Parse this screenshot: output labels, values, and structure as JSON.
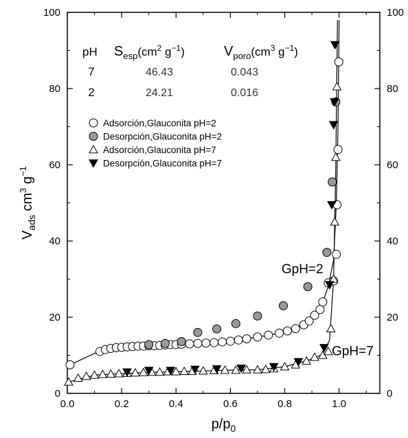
{
  "chart_data": {
    "type": "scatter",
    "xlabel": {
      "base": "p/p",
      "sub": "0"
    },
    "ylabel": {
      "base": "V",
      "sub": "ads",
      "unit": " cm",
      "sup1": "3",
      "mid": " g",
      "sup2": "−1"
    },
    "xlim": [
      0,
      1.15
    ],
    "ylim": [
      0,
      100
    ],
    "x_ticks": [
      "0.0",
      "0.2",
      "0.4",
      "0.6",
      "0.8",
      "1.0"
    ],
    "x_tick_values": [
      0,
      0.2,
      0.4,
      0.6,
      0.8,
      1.0
    ],
    "y_ticks": [
      "0",
      "20",
      "40",
      "60",
      "80",
      "100"
    ],
    "y_tick_values": [
      0,
      20,
      40,
      60,
      80,
      100
    ],
    "right_y_ticks": [
      "0",
      "20",
      "40",
      "60",
      "80",
      "100"
    ],
    "table": {
      "headers": {
        "ph": "pH",
        "s_base": "S",
        "s_sub": "esp",
        "s_unit": "(cm",
        "s_sup1": "2",
        "s_mid": " g",
        "s_sup2": "−1",
        "s_end": ")",
        "v_base": "V",
        "v_sub": "poro",
        "v_unit": "(cm",
        "v_sup1": "3",
        "v_mid": " g",
        "v_sup2": "−1",
        "v_end": ")"
      },
      "rows": [
        {
          "ph": "7",
          "s": "46.43",
          "v": "0.043"
        },
        {
          "ph": "2",
          "s": "24.21",
          "v": "0.016"
        }
      ]
    },
    "series": [
      {
        "name": "Adsorción,Glauconita pH=2",
        "marker": "circle-open",
        "points": [
          [
            0.01,
            7.5
          ],
          [
            0.12,
            11
          ],
          [
            0.14,
            11.5
          ],
          [
            0.16,
            11.8
          ],
          [
            0.18,
            12
          ],
          [
            0.2,
            12.1
          ],
          [
            0.22,
            12.2
          ],
          [
            0.24,
            12.3
          ],
          [
            0.26,
            12.4
          ],
          [
            0.28,
            12.4
          ],
          [
            0.3,
            12.5
          ],
          [
            0.32,
            12.5
          ],
          [
            0.34,
            12.6
          ],
          [
            0.36,
            12.7
          ],
          [
            0.38,
            12.8
          ],
          [
            0.4,
            12.8
          ],
          [
            0.42,
            12.9
          ],
          [
            0.45,
            13
          ],
          [
            0.48,
            13.1
          ],
          [
            0.51,
            13.2
          ],
          [
            0.54,
            13.3
          ],
          [
            0.57,
            13.5
          ],
          [
            0.6,
            13.7
          ],
          [
            0.63,
            14
          ],
          [
            0.66,
            14.3
          ],
          [
            0.7,
            14.8
          ],
          [
            0.74,
            15.3
          ],
          [
            0.78,
            15.8
          ],
          [
            0.81,
            16.4
          ],
          [
            0.84,
            17
          ],
          [
            0.87,
            18
          ],
          [
            0.89,
            19
          ],
          [
            0.91,
            20.5
          ],
          [
            0.93,
            22
          ],
          [
            0.94,
            24
          ],
          [
            0.96,
            29
          ],
          [
            0.98,
            29.5
          ],
          [
            0.99,
            36.5
          ],
          [
            0.993,
            49.5
          ],
          [
            0.996,
            64
          ],
          [
            0.999,
            87
          ]
        ]
      },
      {
        "name": "Desorpción,Glauconita pH=2",
        "marker": "circle-filled",
        "points": [
          [
            0.988,
            76.5
          ],
          [
            0.975,
            55.5
          ],
          [
            0.955,
            37
          ],
          [
            0.885,
            28
          ],
          [
            0.795,
            23
          ],
          [
            0.7,
            20.3
          ],
          [
            0.62,
            18.3
          ],
          [
            0.55,
            16.9
          ],
          [
            0.48,
            16
          ],
          [
            0.42,
            13.6
          ],
          [
            0.36,
            13.1
          ],
          [
            0.3,
            12.8
          ]
        ]
      },
      {
        "name": "Adsorción,Glauconita pH=7",
        "marker": "triangle-open",
        "points": [
          [
            0.005,
            3
          ],
          [
            0.04,
            4
          ],
          [
            0.07,
            4.5
          ],
          [
            0.1,
            4.8
          ],
          [
            0.13,
            5
          ],
          [
            0.16,
            5.1
          ],
          [
            0.19,
            5.2
          ],
          [
            0.22,
            5.3
          ],
          [
            0.25,
            5.4
          ],
          [
            0.28,
            5.5
          ],
          [
            0.31,
            5.6
          ],
          [
            0.34,
            5.6
          ],
          [
            0.37,
            5.7
          ],
          [
            0.4,
            5.7
          ],
          [
            0.43,
            5.8
          ],
          [
            0.46,
            5.8
          ],
          [
            0.5,
            5.9
          ],
          [
            0.54,
            6
          ],
          [
            0.58,
            6.1
          ],
          [
            0.62,
            6.1
          ],
          [
            0.66,
            6.2
          ],
          [
            0.7,
            6.2
          ],
          [
            0.73,
            6.3
          ],
          [
            0.76,
            6.5
          ],
          [
            0.8,
            7
          ],
          [
            0.84,
            7.5
          ],
          [
            0.88,
            8.5
          ],
          [
            0.91,
            9.5
          ],
          [
            0.94,
            10
          ],
          [
            0.96,
            11
          ],
          [
            0.97,
            17
          ],
          [
            0.98,
            30
          ],
          [
            0.984,
            45
          ],
          [
            0.988,
            62
          ],
          [
            0.992,
            80.5
          ]
        ]
      },
      {
        "name": "Desorpción,Glauconita pH=7",
        "marker": "triangle-filled",
        "points": [
          [
            0.985,
            91.5
          ],
          [
            0.983,
            76.5
          ],
          [
            0.98,
            70.5
          ],
          [
            0.973,
            49.5
          ],
          [
            0.965,
            28.5
          ],
          [
            0.945,
            12
          ],
          [
            0.85,
            8.3
          ],
          [
            0.76,
            7
          ],
          [
            0.64,
            6.6
          ],
          [
            0.55,
            6.4
          ],
          [
            0.47,
            6.3
          ],
          [
            0.38,
            6
          ],
          [
            0.3,
            6
          ],
          [
            0.22,
            5.6
          ]
        ]
      }
    ],
    "curves": [
      {
        "name": "",
        "points": [
          [
            0.01,
            7.5
          ],
          [
            0.1,
            10.5
          ],
          [
            0.2,
            12
          ],
          [
            0.3,
            12.5
          ],
          [
            0.4,
            12.8
          ],
          [
            0.5,
            13.1
          ],
          [
            0.6,
            13.7
          ],
          [
            0.7,
            14.8
          ],
          [
            0.8,
            16
          ],
          [
            0.88,
            18.5
          ],
          [
            0.93,
            22
          ],
          [
            0.96,
            28
          ],
          [
            0.98,
            35
          ],
          [
            0.99,
            50
          ],
          [
            0.996,
            70
          ],
          [
            1.0,
            98
          ]
        ]
      },
      {
        "name": "",
        "points": [
          [
            0.005,
            3
          ],
          [
            0.1,
            4.8
          ],
          [
            0.2,
            5.2
          ],
          [
            0.3,
            5.5
          ],
          [
            0.4,
            5.7
          ],
          [
            0.5,
            5.9
          ],
          [
            0.6,
            6.1
          ],
          [
            0.7,
            6.2
          ],
          [
            0.8,
            7
          ],
          [
            0.88,
            8.5
          ],
          [
            0.94,
            10.2
          ],
          [
            0.965,
            14
          ],
          [
            0.98,
            30
          ],
          [
            0.988,
            60
          ],
          [
            0.994,
            98
          ]
        ]
      }
    ],
    "annotations": [
      {
        "text": "GpH=2",
        "x": 0.865,
        "y": 31.5
      },
      {
        "text": "GpH=7",
        "x": 1.05,
        "y": 10
      }
    ],
    "legend_position": "upper-left",
    "grid": false
  }
}
